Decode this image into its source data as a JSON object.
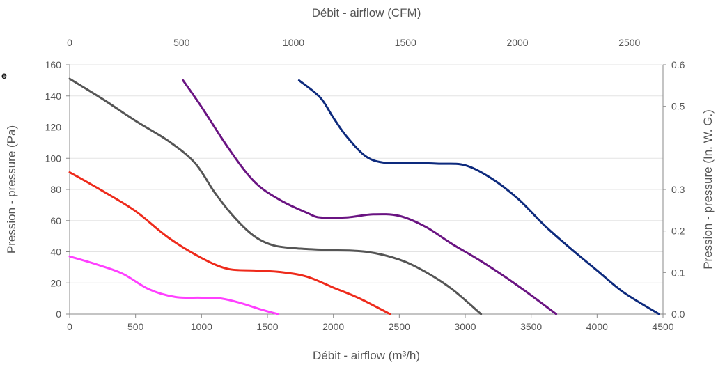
{
  "chart_data": {
    "type": "line",
    "edge_text": "e",
    "xlabel_bottom": "Débit - airflow (m³/h)",
    "xlabel_top": "Débit - airflow (CFM)",
    "ylabel_left": "Pression - pressure (Pa)",
    "ylabel_right": "Pression - pressure (In. W. G.)",
    "xlim": [
      0,
      4500
    ],
    "ylim": [
      0,
      160
    ],
    "x2lim": [
      0,
      2650
    ],
    "y2lim": [
      0.0,
      0.6
    ],
    "x_ticks": [
      "0",
      "500",
      "1000",
      "1500",
      "2000",
      "2500",
      "3000",
      "3500",
      "4000",
      "4500"
    ],
    "x_tick_values": [
      0,
      500,
      1000,
      1500,
      2000,
      2500,
      3000,
      3500,
      4000,
      4500
    ],
    "y_ticks": [
      "0",
      "20",
      "40",
      "60",
      "80",
      "100",
      "120",
      "140",
      "160"
    ],
    "y_tick_values": [
      0,
      20,
      40,
      60,
      80,
      100,
      120,
      140,
      160
    ],
    "x2_ticks": [
      "0",
      "500",
      "1000",
      "1500",
      "2000",
      "2500"
    ],
    "x2_tick_values": [
      0,
      500,
      1000,
      1500,
      2000,
      2500
    ],
    "y2_ticks": [
      "0.0",
      "0.1",
      "0.2",
      "0.3",
      "0.5",
      "0.6"
    ],
    "y2_tick_values": [
      0.0,
      0.1,
      0.2,
      0.3,
      0.5,
      0.6
    ],
    "grid": true,
    "series": [
      {
        "color": "#ff40ff",
        "points": [
          [
            0,
            37
          ],
          [
            200,
            32
          ],
          [
            400,
            26
          ],
          [
            600,
            16
          ],
          [
            800,
            11
          ],
          [
            1000,
            10.5
          ],
          [
            1150,
            10
          ],
          [
            1300,
            7
          ],
          [
            1450,
            3
          ],
          [
            1580,
            0
          ]
        ]
      },
      {
        "color": "#ee2a1b",
        "points": [
          [
            0,
            91
          ],
          [
            250,
            79
          ],
          [
            500,
            66
          ],
          [
            750,
            49
          ],
          [
            1000,
            36
          ],
          [
            1200,
            29
          ],
          [
            1400,
            28
          ],
          [
            1600,
            27
          ],
          [
            1800,
            24
          ],
          [
            2000,
            17
          ],
          [
            2200,
            10
          ],
          [
            2430,
            0
          ]
        ]
      },
      {
        "color": "#555555",
        "points": [
          [
            0,
            151
          ],
          [
            250,
            138
          ],
          [
            500,
            124
          ],
          [
            750,
            111
          ],
          [
            950,
            97
          ],
          [
            1100,
            78
          ],
          [
            1250,
            62
          ],
          [
            1400,
            50
          ],
          [
            1550,
            44
          ],
          [
            1750,
            42
          ],
          [
            2000,
            41
          ],
          [
            2250,
            40
          ],
          [
            2500,
            35
          ],
          [
            2700,
            27
          ],
          [
            2900,
            16
          ],
          [
            3120,
            0
          ]
        ]
      },
      {
        "color": "#6a1482",
        "points": [
          [
            860,
            150
          ],
          [
            1000,
            133
          ],
          [
            1200,
            107
          ],
          [
            1400,
            85
          ],
          [
            1600,
            73
          ],
          [
            1800,
            65
          ],
          [
            1900,
            62
          ],
          [
            2100,
            62
          ],
          [
            2300,
            64
          ],
          [
            2500,
            63
          ],
          [
            2700,
            56
          ],
          [
            2900,
            45
          ],
          [
            3100,
            35
          ],
          [
            3300,
            24
          ],
          [
            3500,
            12
          ],
          [
            3690,
            0
          ]
        ]
      },
      {
        "color": "#0d2a7d",
        "points": [
          [
            1740,
            150
          ],
          [
            1900,
            139
          ],
          [
            2000,
            126
          ],
          [
            2100,
            114
          ],
          [
            2250,
            101
          ],
          [
            2400,
            97
          ],
          [
            2600,
            97
          ],
          [
            2800,
            96.5
          ],
          [
            3000,
            95.5
          ],
          [
            3200,
            87
          ],
          [
            3400,
            74
          ],
          [
            3600,
            57
          ],
          [
            3800,
            42
          ],
          [
            4000,
            28
          ],
          [
            4200,
            14
          ],
          [
            4470,
            0
          ]
        ]
      }
    ]
  }
}
